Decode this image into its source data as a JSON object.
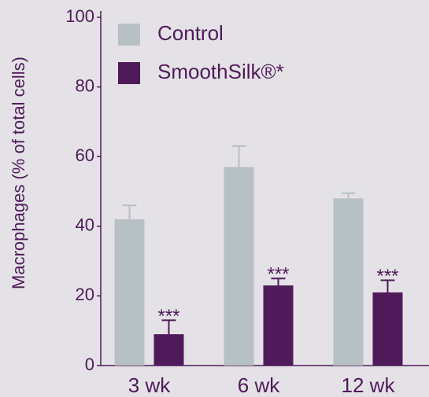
{
  "chart_data": {
    "type": "bar",
    "y_label": "Macrophages (% of total cells)",
    "categories": [
      "3 wk",
      "6 wk",
      "12 wk"
    ],
    "series": [
      {
        "name": "Control",
        "color": "#b7c0c4",
        "values": [
          42,
          57,
          48
        ],
        "errors": [
          4,
          6,
          1.5
        ]
      },
      {
        "name": "SmoothSilk®*",
        "color": "#4f1a5a",
        "values": [
          9,
          23,
          21
        ],
        "errors": [
          4,
          2,
          3.5
        ],
        "annotations": [
          "***",
          "***",
          "***"
        ]
      }
    ],
    "ylim": [
      0,
      100
    ],
    "yticks": [
      0,
      20,
      40,
      60,
      80,
      100
    ],
    "axis_color": "#4f1a5a"
  }
}
